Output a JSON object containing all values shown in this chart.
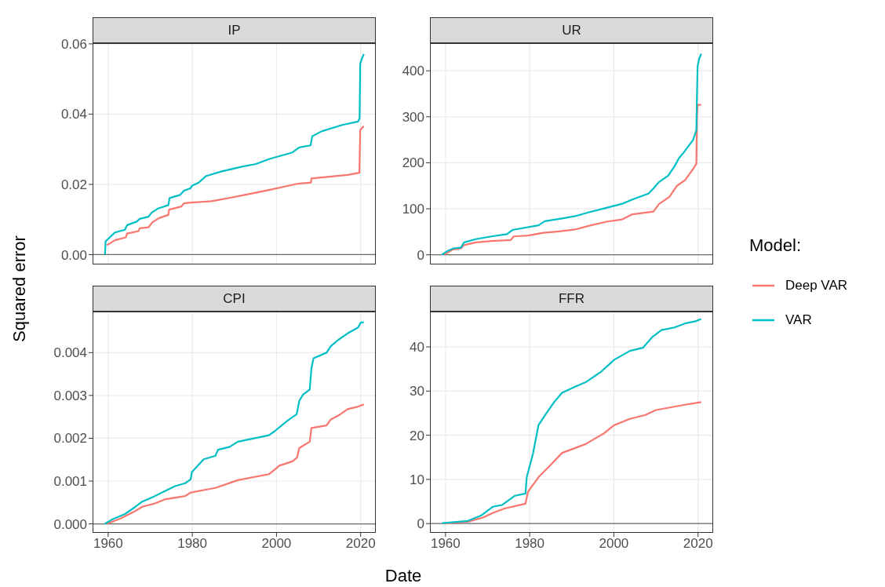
{
  "chart_data": [
    {
      "type": "line",
      "title": "IP",
      "ylabel": "Squared error",
      "xlim": [
        1956.3,
        2023.6
      ],
      "xticks": [
        1960,
        1980,
        2000,
        2020
      ],
      "ylim": [
        -0.0028,
        0.0602
      ],
      "yticks": [
        {
          "value": 0,
          "label": "0.00"
        },
        {
          "value": 0.02,
          "label": "0.02"
        },
        {
          "value": 0.04,
          "label": "0.04"
        },
        {
          "value": 0.06,
          "label": "0.06"
        }
      ],
      "grid": true,
      "tick_labels": "y",
      "ref_lines": [
        {
          "axis": "y",
          "value": 0,
          "color": "#6b6b6b"
        }
      ],
      "series": [
        {
          "color": "#f8766d",
          "x": [
            1959.7,
            1961.6,
            1964.2,
            1964.5,
            1967.2,
            1967.5,
            1969.6,
            1970.6,
            1972.1,
            1974.3,
            1974.5,
            1977.4,
            1978,
            1979.6,
            1984.6,
            1989.5,
            1992,
            1998.2,
            2005.1,
            2008.2,
            2008.3,
            2016.9,
            2019.7,
            2019.9,
            2020.75
          ],
          "values": [
            0.0027,
            0.0041,
            0.0049,
            0.006,
            0.0067,
            0.0075,
            0.0078,
            0.0093,
            0.0104,
            0.0113,
            0.0128,
            0.0137,
            0.0146,
            0.0148,
            0.0152,
            0.0163,
            0.0169,
            0.0184,
            0.0202,
            0.0205,
            0.0217,
            0.0227,
            0.0233,
            0.0355,
            0.0366
          ]
        },
        {
          "color": "#00bfc4",
          "x": [
            1959.25,
            1959.4,
            1961.6,
            1964,
            1964.5,
            1966.8,
            1967.5,
            1969.6,
            1970.3,
            1971.8,
            1974.3,
            1974.6,
            1977.1,
            1978,
            1979.6,
            1979.9,
            1981.5,
            1983.3,
            1987,
            1992,
            1995.1,
            1998.2,
            2003.8,
            2005.4,
            2008.1,
            2008.5,
            2010.7,
            2015.6,
            2019.4,
            2019.75,
            2019.9,
            2020.3,
            2020.75
          ],
          "values": [
            0,
            0.0038,
            0.0063,
            0.0071,
            0.0084,
            0.0094,
            0.0102,
            0.0108,
            0.0119,
            0.0131,
            0.0141,
            0.0161,
            0.017,
            0.0182,
            0.0189,
            0.0196,
            0.0205,
            0.0224,
            0.0237,
            0.0251,
            0.0258,
            0.0272,
            0.0291,
            0.0305,
            0.0311,
            0.0337,
            0.0351,
            0.0369,
            0.0379,
            0.0388,
            0.0543,
            0.0558,
            0.0571
          ]
        }
      ]
    },
    {
      "type": "line",
      "title": "UR",
      "legend": "right",
      "legend_title": "Model:",
      "xlim": [
        1956.3,
        2023.6
      ],
      "xticks": [
        1960,
        1980,
        2000,
        2020
      ],
      "ylim": [
        -21,
        460
      ],
      "yticks": [
        0,
        100,
        200,
        300,
        400
      ],
      "grid": true,
      "tick_labels": "y",
      "ref_lines": [
        {
          "axis": "y",
          "value": 0,
          "color": "#6b6b6b"
        }
      ],
      "series": [
        {
          "name": "Deep VAR",
          "color": "#f8766d",
          "x": [
            1959.7,
            1961.6,
            1963.7,
            1964.4,
            1967.2,
            1970.9,
            1975.5,
            1976.2,
            1979.6,
            1983.3,
            1987,
            1990.8,
            1994.5,
            1998.2,
            2002,
            2004.4,
            2009.4,
            2010.7,
            2013.2,
            2015,
            2016.9,
            2018.8,
            2019.6,
            2019.75,
            2019.9,
            2020.75
          ],
          "values": [
            0,
            11,
            14,
            21,
            27,
            30,
            32,
            40,
            42,
            48,
            51,
            55,
            64,
            72,
            77,
            88,
            94,
            110,
            126,
            150,
            162,
            186,
            198,
            297,
            326,
            326
          ]
        },
        {
          "name": "VAR",
          "color": "#00bfc4",
          "x": [
            1959.1,
            1960.6,
            1961.9,
            1963.7,
            1964.4,
            1967.2,
            1970.9,
            1974.6,
            1975.9,
            1982.1,
            1983.6,
            1987.7,
            1990.8,
            1993.9,
            1998.2,
            2002,
            2004.4,
            2008.2,
            2009.4,
            2010.7,
            2012.9,
            2014.4,
            2015.4,
            2016.9,
            2018.8,
            2019.6,
            2019.7,
            2019.9,
            2020.3,
            2020.75
          ],
          "values": [
            0,
            9,
            14,
            16,
            27,
            34,
            40,
            45,
            54,
            64,
            73,
            79,
            84,
            92,
            102,
            111,
            120,
            133,
            144,
            158,
            172,
            192,
            209,
            226,
            249,
            271,
            325,
            410,
            427,
            437
          ]
        }
      ]
    },
    {
      "type": "line",
      "title": "CPI",
      "xlabel": "Date",
      "xlim": [
        1956.3,
        2023.6
      ],
      "xticks": [
        1960,
        1980,
        2000,
        2020
      ],
      "ylim": [
        -0.00021,
        0.00496
      ],
      "yticks": [
        {
          "value": 0,
          "label": "0.000"
        },
        {
          "value": 0.001,
          "label": "0.001"
        },
        {
          "value": 0.002,
          "label": "0.002"
        },
        {
          "value": 0.003,
          "label": "0.003"
        },
        {
          "value": 0.004,
          "label": "0.004"
        }
      ],
      "grid": true,
      "ref_lines": [
        {
          "axis": "y",
          "value": 0,
          "color": "#6b6b6b"
        }
      ],
      "series": [
        {
          "color": "#f8766d",
          "x": [
            1959.7,
            1962.8,
            1965.9,
            1968.1,
            1970.9,
            1973.4,
            1978.3,
            1979.6,
            1982.7,
            1985.5,
            1990.8,
            1998.2,
            2000.7,
            2003.8,
            2004.9,
            2005.4,
            2007.9,
            2008.3,
            2011.9,
            2012.9,
            2014.7,
            2016.9,
            2019.4,
            2020.75
          ],
          "values": [
            0,
            0.00012,
            0.00027,
            0.0004,
            0.00047,
            0.00057,
            0.00065,
            0.00073,
            0.00079,
            0.00084,
            0.00102,
            0.00116,
            0.00136,
            0.00146,
            0.00155,
            0.00177,
            0.00192,
            0.00224,
            0.0023,
            0.00244,
            0.00253,
            0.00268,
            0.00274,
            0.00279
          ]
        },
        {
          "color": "#00bfc4",
          "x": [
            1959.2,
            1960.9,
            1964,
            1966.5,
            1968.1,
            1970.9,
            1973.4,
            1975.9,
            1978.3,
            1979.6,
            1979.9,
            1982.7,
            1985.5,
            1986.1,
            1988.9,
            1990.8,
            1998.2,
            1999.5,
            2002.6,
            2004.8,
            2005.4,
            2006.3,
            2007.9,
            2008.3,
            2008.8,
            2011.9,
            2012.9,
            2014.7,
            2016.9,
            2019.4,
            2020,
            2020.75
          ],
          "values": [
            0,
            0.0001,
            0.00023,
            0.0004,
            0.00052,
            0.00064,
            0.00076,
            0.00088,
            0.00095,
            0.00104,
            0.00121,
            0.00151,
            0.00159,
            0.00173,
            0.0018,
            0.00192,
            0.00207,
            0.00216,
            0.00241,
            0.00256,
            0.00287,
            0.00302,
            0.00314,
            0.00363,
            0.00387,
            0.004,
            0.00415,
            0.0043,
            0.00445,
            0.00459,
            0.0047,
            0.00471
          ]
        }
      ]
    },
    {
      "type": "line",
      "title": "FFR",
      "xlim": [
        1956.3,
        2023.6
      ],
      "xticks": [
        1960,
        1980,
        2000,
        2020
      ],
      "ylim": [
        -2.1,
        48
      ],
      "yticks": [
        0,
        10,
        20,
        30,
        40
      ],
      "grid": true,
      "ref_lines": [
        {
          "axis": "y",
          "value": 0,
          "color": "#6b6b6b"
        }
      ],
      "series": [
        {
          "color": "#f8766d",
          "x": [
            1959.7,
            1965.3,
            1969,
            1971.2,
            1974,
            1979,
            1979.6,
            1982.1,
            1984.6,
            1987.7,
            1993.3,
            1997.6,
            2000.1,
            2003.8,
            2007.5,
            2010,
            2016.9,
            2020.75
          ],
          "values": [
            0,
            0.4,
            1.4,
            2.4,
            3.4,
            4.5,
            7.2,
            10.5,
            12.9,
            16,
            18,
            20.4,
            22.3,
            23.7,
            24.6,
            25.7,
            26.9,
            27.5
          ]
        },
        {
          "color": "#00bfc4",
          "x": [
            1959.2,
            1965.3,
            1968.4,
            1971.2,
            1973.4,
            1976.5,
            1979,
            1979.3,
            1980.8,
            1982.1,
            1983.9,
            1985.8,
            1987.7,
            1990.8,
            1993.3,
            1997,
            2000.1,
            2003.8,
            2006.9,
            2009.1,
            2011.3,
            2014.4,
            2016.9,
            2019.4,
            2020.75
          ],
          "values": [
            0.1,
            0.6,
            1.8,
            3.8,
            4.2,
            6.3,
            6.8,
            10.5,
            15.9,
            22.3,
            24.9,
            27.5,
            29.6,
            31,
            32,
            34.4,
            37.1,
            39.1,
            39.8,
            42.2,
            43.8,
            44.4,
            45.3,
            45.8,
            46.3
          ]
        }
      ]
    }
  ]
}
